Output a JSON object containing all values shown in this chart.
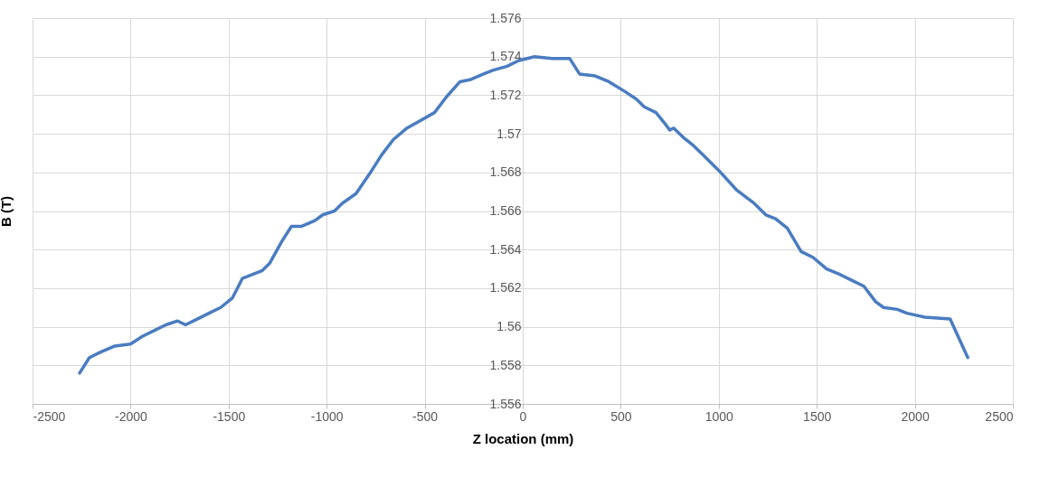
{
  "chart_data": {
    "type": "line",
    "xlabel": "Z location  (mm)",
    "ylabel": "B (T)",
    "x": [
      -2260,
      -2210,
      -2150,
      -2080,
      -2000,
      -1940,
      -1880,
      -1820,
      -1760,
      -1720,
      -1660,
      -1600,
      -1540,
      -1480,
      -1430,
      -1380,
      -1330,
      -1290,
      -1230,
      -1180,
      -1130,
      -1060,
      -1020,
      -960,
      -920,
      -850,
      -810,
      -770,
      -720,
      -660,
      -590,
      -520,
      -450,
      -390,
      -320,
      -270,
      -200,
      -150,
      -80,
      -20,
      60,
      150,
      240,
      290,
      370,
      440,
      520,
      580,
      620,
      680,
      720,
      750,
      770,
      820,
      870,
      920,
      1000,
      1090,
      1180,
      1240,
      1290,
      1350,
      1420,
      1480,
      1550,
      1620,
      1680,
      1740,
      1800,
      1840,
      1910,
      1960,
      2050,
      2180,
      2270
    ],
    "series": [
      {
        "color": "#4a7cc0",
        "values": [
          1.5576,
          1.5584,
          1.5587,
          1.559,
          1.5591,
          1.5595,
          1.5598,
          1.5601,
          1.5603,
          1.5601,
          1.5604,
          1.5607,
          1.561,
          1.5615,
          1.5625,
          1.5627,
          1.5629,
          1.5633,
          1.5644,
          1.5652,
          1.5652,
          1.5655,
          1.5658,
          1.566,
          1.5664,
          1.5669,
          1.5675,
          1.5681,
          1.5689,
          1.5697,
          1.5703,
          1.5707,
          1.5711,
          1.5719,
          1.5727,
          1.5728,
          1.5731,
          1.5733,
          1.5735,
          1.5738,
          1.574,
          1.5739,
          1.5739,
          1.5731,
          1.573,
          1.5727,
          1.5722,
          1.5718,
          1.5714,
          1.5711,
          1.5706,
          1.5702,
          1.5703,
          1.5698,
          1.5694,
          1.5689,
          1.5681,
          1.5671,
          1.5664,
          1.5658,
          1.5656,
          1.5651,
          1.5639,
          1.5636,
          1.563,
          1.5627,
          1.5624,
          1.5621,
          1.5613,
          1.561,
          1.5609,
          1.5607,
          1.5605,
          1.5604,
          1.5584
        ]
      }
    ],
    "xlim": [
      -2500,
      2500
    ],
    "xticks": [
      -2500,
      -2000,
      -1500,
      -1000,
      -500,
      0,
      500,
      1000,
      1500,
      2000,
      2500
    ],
    "ylim": [
      1.556,
      1.576
    ],
    "yticks": [
      1.556,
      1.558,
      1.56,
      1.562,
      1.564,
      1.566,
      1.568,
      1.57,
      1.572,
      1.574,
      1.576
    ],
    "grid": true,
    "marker": "none",
    "line_style": "solid"
  }
}
